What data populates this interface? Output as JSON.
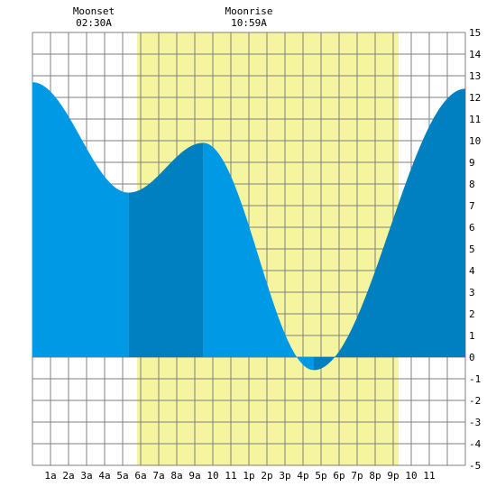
{
  "moon": {
    "moonset_label": "Moonset",
    "moonset_time": "02:30A",
    "moonrise_label": "Moonrise",
    "moonrise_time": "10:59A"
  },
  "chart_data": {
    "type": "area",
    "title": "",
    "xlabel": "",
    "ylabel": "",
    "xlim": [
      0,
      24
    ],
    "ylim": [
      -5,
      15
    ],
    "grid": true,
    "x_ticks": [
      {
        "x": 1,
        "label": "1a"
      },
      {
        "x": 2,
        "label": "2a"
      },
      {
        "x": 3,
        "label": "3a"
      },
      {
        "x": 4,
        "label": "4a"
      },
      {
        "x": 5,
        "label": "5a"
      },
      {
        "x": 6,
        "label": "6a"
      },
      {
        "x": 7,
        "label": "7a"
      },
      {
        "x": 8,
        "label": "8a"
      },
      {
        "x": 9,
        "label": "9a"
      },
      {
        "x": 10,
        "label": "10"
      },
      {
        "x": 11,
        "label": "11"
      },
      {
        "x": 12,
        "label": "1p"
      },
      {
        "x": 13,
        "label": "2p"
      },
      {
        "x": 14,
        "label": "3p"
      },
      {
        "x": 15,
        "label": "4p"
      },
      {
        "x": 16,
        "label": "5p"
      },
      {
        "x": 17,
        "label": "6p"
      },
      {
        "x": 18,
        "label": "7p"
      },
      {
        "x": 19,
        "label": "8p"
      },
      {
        "x": 20,
        "label": "9p"
      },
      {
        "x": 21,
        "label": "10"
      },
      {
        "x": 22,
        "label": "11"
      }
    ],
    "y_ticks": [
      -5,
      -4,
      -3,
      -2,
      -1,
      0,
      1,
      2,
      3,
      4,
      5,
      6,
      7,
      8,
      9,
      10,
      11,
      12,
      13,
      14,
      15
    ],
    "daylight": {
      "start": 5.8,
      "end": 20.3
    },
    "dark_segments": [
      [
        5.33,
        9.47
      ],
      [
        15.6,
        24
      ]
    ],
    "tide_curve": [
      {
        "t": 0.0,
        "h": 12.7
      },
      {
        "t": 5.33,
        "h": 7.6
      },
      {
        "t": 9.47,
        "h": 9.9
      },
      {
        "t": 15.6,
        "h": -0.6
      },
      {
        "t": 24.0,
        "h": 12.4
      }
    ],
    "colors": {
      "daylight": "#f5f5a0",
      "tide_light": "#0099e6",
      "tide_dark": "#0080c0",
      "grid": "#808080"
    }
  }
}
